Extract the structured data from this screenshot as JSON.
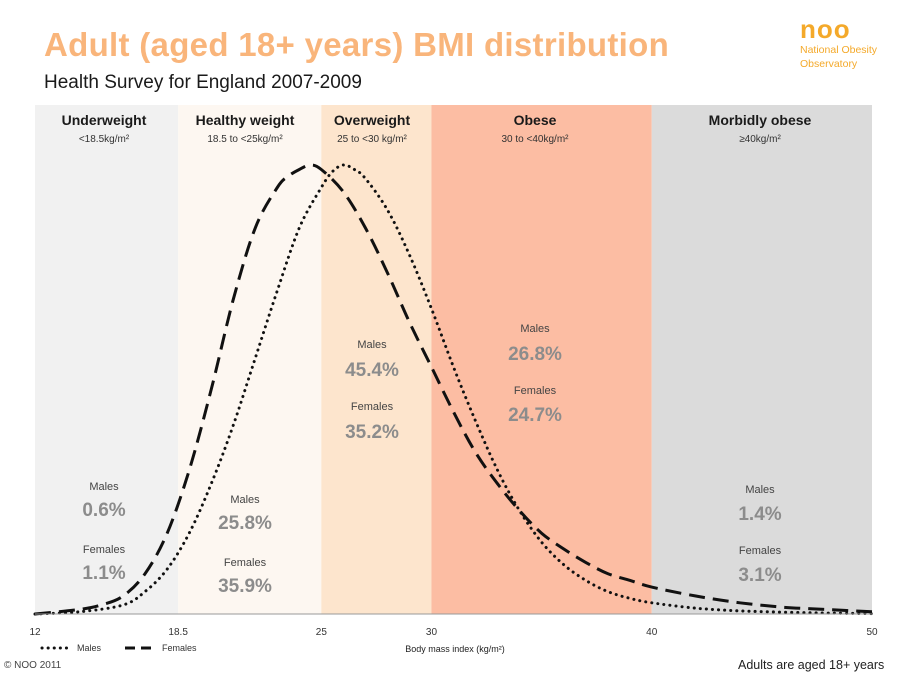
{
  "header": {
    "title": "Adult (aged 18+ years) BMI distribution",
    "subtitle": "Health Survey for England 2007-2009"
  },
  "logo": {
    "mark": "noo",
    "org_line1": "National Obesity",
    "org_line2": "Observatory"
  },
  "footer": {
    "copyright": "© NOO 2011",
    "note": "Adults are aged 18+ years"
  },
  "chart_data": {
    "type": "line",
    "xlabel": "Body mass index (kg/m²)",
    "xlim": [
      12,
      50
    ],
    "xticks": [
      {
        "value": 12,
        "label": "12"
      },
      {
        "value": 18.5,
        "label": "18.5"
      },
      {
        "value": 25,
        "label": "25"
      },
      {
        "value": 30,
        "label": "30"
      },
      {
        "value": 40,
        "label": "40"
      },
      {
        "value": 50,
        "label": "50"
      }
    ],
    "bands": [
      {
        "name": "Underweight",
        "range": "<18.5kg/m²",
        "from": 12,
        "to": 18.5,
        "color": "#f1f1f1",
        "males_label": "Males",
        "males_value": "0.6%",
        "females_label": "Females",
        "females_value": "1.1%"
      },
      {
        "name": "Healthy weight",
        "range": "18.5 to <25kg/m²",
        "from": 18.5,
        "to": 25,
        "color": "#fdf7f1",
        "males_label": "Males",
        "males_value": "25.8%",
        "females_label": "Females",
        "females_value": "35.9%"
      },
      {
        "name": "Overweight",
        "range": "25 to <30 kg/m²",
        "from": 25,
        "to": 30,
        "color": "#fde5cd",
        "males_label": "Males",
        "males_value": "45.4%",
        "females_label": "Females",
        "females_value": "35.2%"
      },
      {
        "name": "Obese",
        "range": "30 to <40kg/m²",
        "from": 30,
        "to": 40,
        "color": "#fcbda3",
        "males_label": "Males",
        "males_value": "26.8%",
        "females_label": "Females",
        "females_value": "24.7%"
      },
      {
        "name": "Morbidly obese",
        "range": "≥40kg/m²",
        "from": 40,
        "to": 50,
        "color": "#dbdbdb",
        "males_label": "Males",
        "males_value": "1.4%",
        "females_label": "Females",
        "females_value": "3.1%"
      }
    ],
    "series": [
      {
        "name": "Males",
        "style": "dotted",
        "x": [
          12,
          14,
          16,
          17,
          18,
          19,
          20,
          21,
          22,
          23,
          24,
          25,
          25.5,
          26,
          26.5,
          27,
          28,
          29,
          30,
          31,
          32,
          33,
          34,
          35,
          36,
          37,
          38,
          39,
          40,
          42,
          44,
          46,
          48,
          50
        ],
        "y": [
          0,
          0.005,
          0.02,
          0.05,
          0.1,
          0.18,
          0.29,
          0.42,
          0.57,
          0.72,
          0.86,
          0.95,
          0.985,
          1.0,
          0.99,
          0.97,
          0.9,
          0.8,
          0.68,
          0.55,
          0.43,
          0.32,
          0.23,
          0.16,
          0.11,
          0.075,
          0.05,
          0.035,
          0.025,
          0.013,
          0.007,
          0.004,
          0.002,
          0.001
        ]
      },
      {
        "name": "Females",
        "style": "dashed",
        "x": [
          12,
          14,
          15,
          16,
          17,
          18,
          19,
          20,
          21,
          22,
          23,
          23.5,
          24,
          24.5,
          25,
          26,
          27,
          28,
          29,
          30,
          31,
          32,
          33,
          34,
          35,
          36,
          37,
          38,
          39,
          40,
          42,
          44,
          46,
          48,
          50
        ],
        "y": [
          0,
          0.01,
          0.02,
          0.04,
          0.09,
          0.18,
          0.32,
          0.5,
          0.7,
          0.86,
          0.95,
          0.975,
          0.99,
          1.0,
          0.99,
          0.94,
          0.86,
          0.76,
          0.65,
          0.55,
          0.45,
          0.36,
          0.29,
          0.23,
          0.18,
          0.145,
          0.115,
          0.09,
          0.075,
          0.06,
          0.04,
          0.025,
          0.015,
          0.01,
          0.005
        ]
      }
    ],
    "legend": [
      {
        "name": "Males",
        "style": "dotted"
      },
      {
        "name": "Females",
        "style": "dashed"
      }
    ]
  }
}
